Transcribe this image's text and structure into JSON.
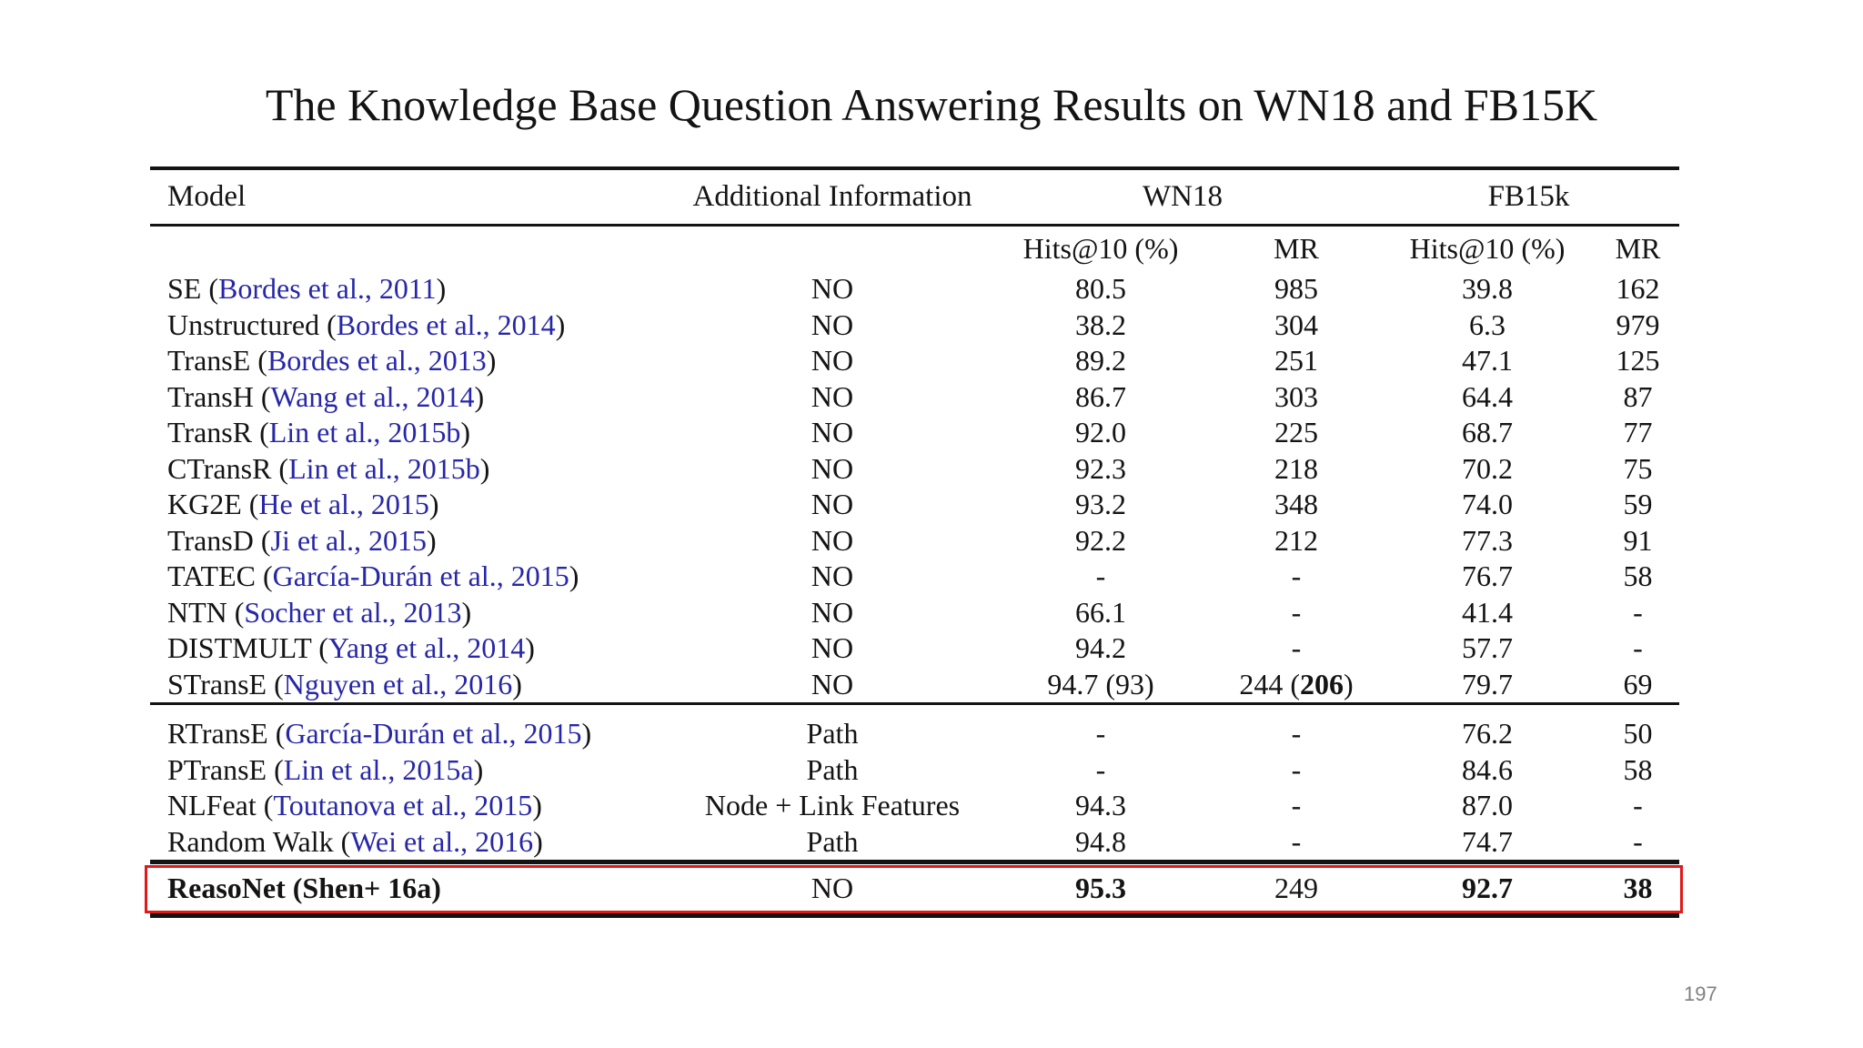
{
  "slide": {
    "title": "The Knowledge Base Question Answering Results on WN18 and FB15K",
    "page_number": "197"
  },
  "colors": {
    "citation_blue": "#2727a8",
    "highlight_red": "#e01a1a",
    "rule_black": "#131313",
    "page_number_gray": "#808080"
  },
  "table": {
    "headers": {
      "model": "Model",
      "additional_information": "Additional Information",
      "wn18": "WN18",
      "fb15k": "FB15k",
      "hits_at_10": "Hits@10 (%)",
      "mr": "MR"
    },
    "groups": [
      [
        {
          "model": "SE",
          "citation": "Bordes et al., 2011",
          "info": "NO",
          "wn18_hits": "80.5",
          "wn18_mr": "985",
          "fb15k_hits": "39.8",
          "fb15k_mr": "162"
        },
        {
          "model": "Unstructured",
          "citation": "Bordes et al., 2014",
          "info": "NO",
          "wn18_hits": "38.2",
          "wn18_mr": "304",
          "fb15k_hits": "6.3",
          "fb15k_mr": "979"
        },
        {
          "model": "TransE",
          "citation": "Bordes et al., 2013",
          "info": "NO",
          "wn18_hits": "89.2",
          "wn18_mr": "251",
          "fb15k_hits": "47.1",
          "fb15k_mr": "125"
        },
        {
          "model": "TransH",
          "citation": "Wang et al., 2014",
          "info": "NO",
          "wn18_hits": "86.7",
          "wn18_mr": "303",
          "fb15k_hits": "64.4",
          "fb15k_mr": "87"
        },
        {
          "model": "TransR",
          "citation": "Lin et al., 2015b",
          "info": "NO",
          "wn18_hits": "92.0",
          "wn18_mr": "225",
          "fb15k_hits": "68.7",
          "fb15k_mr": "77"
        },
        {
          "model": "CTransR",
          "citation": "Lin et al., 2015b",
          "info": "NO",
          "wn18_hits": "92.3",
          "wn18_mr": "218",
          "fb15k_hits": "70.2",
          "fb15k_mr": "75"
        },
        {
          "model": "KG2E",
          "citation": "He et al., 2015",
          "info": "NO",
          "wn18_hits": "93.2",
          "wn18_mr": "348",
          "fb15k_hits": "74.0",
          "fb15k_mr": "59"
        },
        {
          "model": "TransD",
          "citation": "Ji et al., 2015",
          "info": "NO",
          "wn18_hits": "92.2",
          "wn18_mr": "212",
          "fb15k_hits": "77.3",
          "fb15k_mr": "91"
        },
        {
          "model": "TATEC",
          "citation": "García-Durán et al., 2015",
          "info": "NO",
          "wn18_hits": "-",
          "wn18_mr": "-",
          "fb15k_hits": "76.7",
          "fb15k_mr": "58"
        },
        {
          "model": "NTN",
          "citation": "Socher et al., 2013",
          "info": "NO",
          "wn18_hits": "66.1",
          "wn18_mr": "-",
          "fb15k_hits": "41.4",
          "fb15k_mr": "-"
        },
        {
          "model": "DISTMULT",
          "citation": "Yang et al., 2014",
          "info": "NO",
          "wn18_hits": "94.2",
          "wn18_mr": "-",
          "fb15k_hits": "57.7",
          "fb15k_mr": "-"
        },
        {
          "model": "STransE",
          "citation": "Nguyen et al., 2016",
          "info": "NO",
          "wn18_hits": "94.7 (93)",
          "wn18_mr": "244 (**206**)",
          "fb15k_hits": "79.7",
          "fb15k_mr": "69"
        }
      ],
      [
        {
          "model": "RTransE",
          "citation": "García-Durán et al., 2015",
          "info": "Path",
          "wn18_hits": "-",
          "wn18_mr": "-",
          "fb15k_hits": "76.2",
          "fb15k_mr": "50"
        },
        {
          "model": "PTransE",
          "citation": "Lin et al., 2015a",
          "info": "Path",
          "wn18_hits": "-",
          "wn18_mr": "-",
          "fb15k_hits": "84.6",
          "fb15k_mr": "58"
        },
        {
          "model": "NLFeat",
          "citation": "Toutanova et al., 2015",
          "info": "Node + Link Features",
          "wn18_hits": "94.3",
          "wn18_mr": "-",
          "fb15k_hits": "87.0",
          "fb15k_mr": "-"
        },
        {
          "model": "Random Walk",
          "citation": "Wei et al., 2016",
          "info": "Path",
          "wn18_hits": "94.8",
          "wn18_mr": "-",
          "fb15k_hits": "74.7",
          "fb15k_mr": "-"
        }
      ]
    ],
    "highlight_row": {
      "model": "ReasoNet (Shen+ 16a)",
      "citation": null,
      "info": "NO",
      "wn18_hits": "**95.3**",
      "wn18_mr": "249",
      "fb15k_hits": "**92.7**",
      "fb15k_mr": "**38**"
    }
  }
}
